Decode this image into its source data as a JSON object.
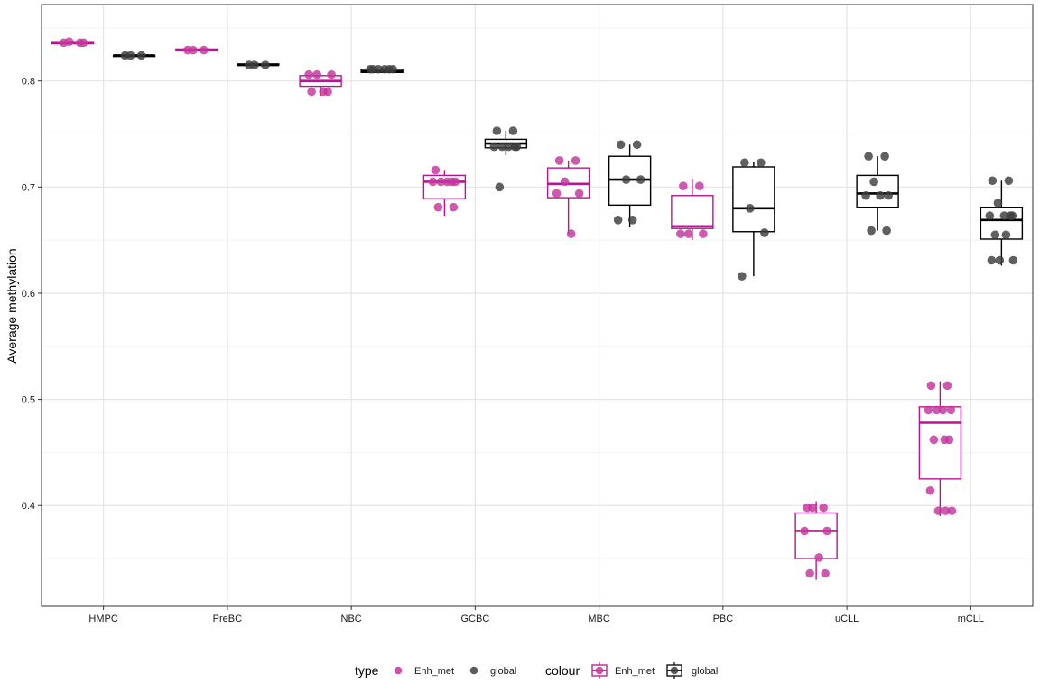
{
  "chart_data": {
    "type": "box",
    "title": "",
    "xlabel": "",
    "ylabel": "Average methylation",
    "ylim": [
      0.305,
      0.872
    ],
    "y_ticks": [
      0.4,
      0.5,
      0.6,
      0.7,
      0.8
    ],
    "y_tick_labels": [
      "0.4",
      "0.5",
      "0.6",
      "0.7",
      "0.8"
    ],
    "categories": [
      "HMPC",
      "PreBC",
      "NBC",
      "GCBC",
      "MBC",
      "PBC",
      "uCLL",
      "mCLL"
    ],
    "grid": true,
    "legend_position": "bottom",
    "legend": {
      "type_title": "type",
      "colour_title": "colour",
      "entries": [
        "Enh_met",
        "global"
      ]
    },
    "colors": {
      "Enh_met": "#b5178f",
      "global": "#000000",
      "Enh_met_point": "#c4359c",
      "global_point": "#3d3d3d"
    },
    "series": [
      {
        "name": "Enh_met",
        "boxes": [
          {
            "category": "HMPC",
            "lower": 0.835,
            "q1": 0.835,
            "median": 0.836,
            "q3": 0.837,
            "upper": 0.838
          },
          {
            "category": "PreBC",
            "lower": 0.829,
            "q1": 0.829,
            "median": 0.829,
            "q3": 0.83,
            "upper": 0.83
          },
          {
            "category": "NBC",
            "lower": 0.786,
            "q1": 0.795,
            "median": 0.8,
            "q3": 0.805,
            "upper": 0.806
          },
          {
            "category": "GCBC",
            "lower": 0.673,
            "q1": 0.689,
            "median": 0.705,
            "q3": 0.711,
            "upper": 0.716
          },
          {
            "category": "MBC",
            "lower": 0.656,
            "q1": 0.69,
            "median": 0.703,
            "q3": 0.718,
            "upper": 0.725
          },
          {
            "category": "PBC",
            "lower": 0.65,
            "q1": 0.661,
            "median": 0.663,
            "q3": 0.692,
            "upper": 0.708
          },
          {
            "category": "uCLL",
            "lower": 0.33,
            "q1": 0.35,
            "median": 0.376,
            "q3": 0.393,
            "upper": 0.404
          },
          {
            "category": "mCLL",
            "lower": 0.39,
            "q1": 0.425,
            "median": 0.478,
            "q3": 0.493,
            "upper": 0.517
          }
        ],
        "points": {
          "HMPC": [
            0.836,
            0.836,
            0.837,
            0.836
          ],
          "PreBC": [
            0.829,
            0.829,
            0.829
          ],
          "NBC": [
            0.79,
            0.79,
            0.806,
            0.806,
            0.806,
            0.79
          ],
          "GCBC": [
            0.716,
            0.705,
            0.705,
            0.705,
            0.705,
            0.705,
            0.681,
            0.681
          ],
          "MBC": [
            0.725,
            0.725,
            0.705,
            0.694,
            0.694,
            0.656
          ],
          "PBC": [
            0.701,
            0.701,
            0.656,
            0.656,
            0.656
          ],
          "uCLL": [
            0.398,
            0.398,
            0.398,
            0.376,
            0.376,
            0.351,
            0.336,
            0.336
          ],
          "mCLL": [
            0.513,
            0.513,
            0.49,
            0.49,
            0.49,
            0.49,
            0.462,
            0.462,
            0.462,
            0.414,
            0.395,
            0.395,
            0.395
          ]
        }
      },
      {
        "name": "global",
        "boxes": [
          {
            "category": "HMPC",
            "lower": 0.823,
            "q1": 0.823,
            "median": 0.824,
            "q3": 0.824,
            "upper": 0.824
          },
          {
            "category": "PreBC",
            "lower": 0.815,
            "q1": 0.815,
            "median": 0.815,
            "q3": 0.816,
            "upper": 0.816
          },
          {
            "category": "NBC",
            "lower": 0.808,
            "q1": 0.808,
            "median": 0.809,
            "q3": 0.811,
            "upper": 0.813
          },
          {
            "category": "GCBC",
            "lower": 0.73,
            "q1": 0.737,
            "median": 0.741,
            "q3": 0.745,
            "upper": 0.753
          },
          {
            "category": "MBC",
            "lower": 0.662,
            "q1": 0.683,
            "median": 0.707,
            "q3": 0.729,
            "upper": 0.74
          },
          {
            "category": "PBC",
            "lower": 0.616,
            "q1": 0.658,
            "median": 0.68,
            "q3": 0.719,
            "upper": 0.724
          },
          {
            "category": "uCLL",
            "lower": 0.659,
            "q1": 0.681,
            "median": 0.694,
            "q3": 0.711,
            "upper": 0.729
          },
          {
            "category": "mCLL",
            "lower": 0.626,
            "q1": 0.651,
            "median": 0.669,
            "q3": 0.681,
            "upper": 0.706
          }
        ],
        "points": {
          "HMPC": [
            0.824,
            0.824,
            0.824
          ],
          "PreBC": [
            0.815,
            0.815,
            0.815
          ],
          "NBC": [
            0.811,
            0.811,
            0.811,
            0.811,
            0.811,
            0.811
          ],
          "GCBC": [
            0.753,
            0.753,
            0.738,
            0.738,
            0.738,
            0.738,
            0.738,
            0.7
          ],
          "MBC": [
            0.74,
            0.74,
            0.707,
            0.707,
            0.669,
            0.669
          ],
          "PBC": [
            0.723,
            0.723,
            0.68,
            0.657,
            0.616
          ],
          "uCLL": [
            0.729,
            0.729,
            0.705,
            0.692,
            0.692,
            0.692,
            0.659,
            0.659
          ],
          "mCLL": [
            0.706,
            0.706,
            0.685,
            0.673,
            0.673,
            0.673,
            0.673,
            0.655,
            0.655,
            0.631,
            0.631,
            0.631
          ]
        }
      }
    ]
  }
}
